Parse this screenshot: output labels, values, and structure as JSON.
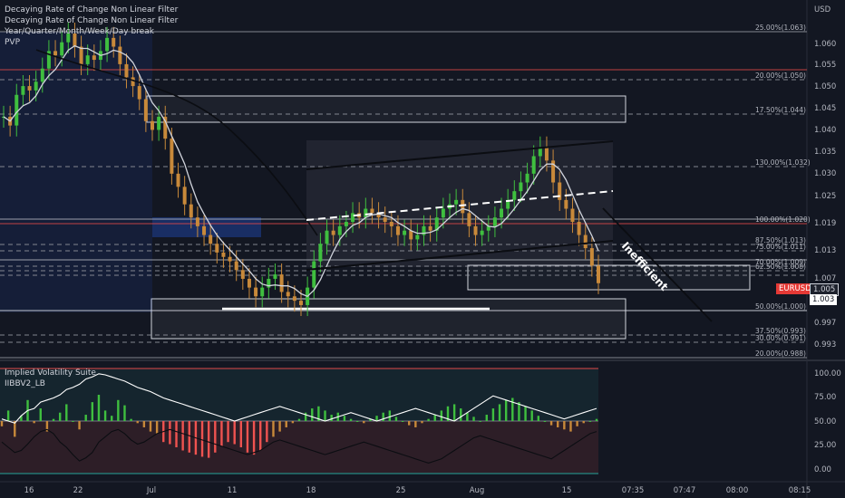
{
  "legend": {
    "indicators": [
      "Decaying Rate of Change Non Linear Filter",
      "Decaying Rate of Change Non Linear Filter",
      "Year/Quarter/Month/Week/Day break",
      "PVP"
    ],
    "lower_title": "Implied Volatility Suite",
    "lower_subtitle": "IIBBV2_LB"
  },
  "axis": {
    "currency": "USD",
    "price_ticks": [
      "1.060",
      "1.055",
      "1.050",
      "1.045",
      "1.040",
      "1.035",
      "1.030",
      "1.025",
      "1.019",
      "1.013",
      "1.007",
      "0.997",
      "0.993"
    ],
    "lower_ticks": [
      "100.00",
      "75.00",
      "50.00",
      "25.00",
      "0.00"
    ],
    "time_ticks": [
      "16",
      "22",
      "Jul",
      "11",
      "18",
      "25",
      "Aug",
      "15",
      "07:35",
      "07:47",
      "08:00",
      "08:15"
    ]
  },
  "fib_levels": [
    {
      "label": "25.00%(1.063)"
    },
    {
      "label": "20.00%(1.050)"
    },
    {
      "label": "17.50%(1.044)"
    },
    {
      "label": "130.00%(1.032)"
    },
    {
      "label": "100.00%(1.020)"
    },
    {
      "label": "87.50%(1.013)"
    },
    {
      "label": "75.00%(1.011)"
    },
    {
      "label": "70.00%(1.009)"
    },
    {
      "label": "62.50%(1.008)"
    },
    {
      "label": "50.00%(1.000)"
    },
    {
      "label": "37.50%(0.993)"
    },
    {
      "label": "30.00%(0.991)"
    },
    {
      "label": "20.00%(0.988)"
    }
  ],
  "annotation": "Inefficient",
  "price_badges": {
    "symbol": "EURUSD",
    "last": "1.005",
    "secondary": "1.003"
  },
  "colors": {
    "background": "#131722",
    "bull": "#26a69a",
    "bear": "#ef5350",
    "green_bar": "#3fbf3f",
    "orange_bar": "#c8893a",
    "red_line": "#e04848",
    "accent": "#2962ff"
  },
  "chart_data": [
    {
      "type": "candlestick",
      "title": "EURUSD",
      "ylim": [
        0.988,
        1.068
      ],
      "x_labels": [
        "16",
        "22",
        "Jul",
        "11",
        "18",
        "25",
        "Aug",
        "15"
      ],
      "close": [
        1.043,
        1.041,
        1.048,
        1.05,
        1.049,
        1.051,
        1.054,
        1.058,
        1.057,
        1.06,
        1.062,
        1.059,
        1.055,
        1.057,
        1.056,
        1.058,
        1.061,
        1.059,
        1.055,
        1.052,
        1.05,
        1.047,
        1.042,
        1.04,
        1.043,
        1.038,
        1.03,
        1.027,
        1.023,
        1.02,
        1.018,
        1.016,
        1.014,
        1.012,
        1.011,
        1.01,
        1.008,
        1.006,
        1.004,
        1.002,
        1.004,
        1.006,
        1.007,
        1.003,
        1.002,
        1.001,
        1.0,
        1.004,
        1.01,
        1.014,
        1.017,
        1.016,
        1.018,
        1.019,
        1.021,
        1.02,
        1.022,
        1.021,
        1.02,
        1.019,
        1.018,
        1.016,
        1.017,
        1.015,
        1.016,
        1.018,
        1.017,
        1.02,
        1.022,
        1.023,
        1.024,
        1.021,
        1.018,
        1.016,
        1.017,
        1.018,
        1.02,
        1.022,
        1.024,
        1.026,
        1.028,
        1.03,
        1.034,
        1.036,
        1.033,
        1.028,
        1.024,
        1.022,
        1.019,
        1.016,
        1.013,
        1.009,
        1.005
      ]
    },
    {
      "type": "bar",
      "title": "Implied Volatility Suite",
      "ylim": [
        0,
        100
      ],
      "values": [
        45,
        60,
        35,
        55,
        70,
        48,
        62,
        40,
        52,
        58,
        66,
        50,
        42,
        56,
        68,
        75,
        60,
        55,
        70,
        65,
        52,
        48,
        44,
        40,
        38,
        30,
        28,
        25,
        22,
        20,
        18,
        16,
        15,
        20,
        26,
        30,
        28,
        25,
        20,
        18,
        22,
        30,
        35,
        40,
        44,
        48,
        52,
        58,
        62,
        64,
        60,
        56,
        58,
        55,
        52,
        50,
        48,
        52,
        55,
        58,
        60,
        54,
        50,
        46,
        44,
        48,
        52,
        56,
        60,
        64,
        66,
        62,
        58,
        54,
        50,
        56,
        62,
        66,
        70,
        72,
        68,
        64,
        60,
        55,
        50,
        46,
        44,
        42,
        40,
        45,
        48,
        50,
        52
      ],
      "line_high": [
        52,
        50,
        48,
        55,
        60,
        62,
        68,
        70,
        72,
        75,
        80,
        82,
        85,
        90,
        92,
        95,
        94,
        92,
        90,
        88,
        85,
        82,
        80,
        78,
        75,
        72,
        70,
        68,
        66,
        64,
        62,
        60,
        58,
        56,
        54,
        52,
        50,
        52,
        54,
        56,
        58,
        60,
        62,
        64,
        62,
        60,
        58,
        56,
        54,
        52,
        50,
        52,
        54,
        56,
        58,
        56,
        54,
        52,
        50,
        52,
        54,
        56,
        58,
        60,
        62,
        60,
        58,
        56,
        54,
        52,
        50,
        54,
        58,
        62,
        66,
        70,
        74,
        72,
        70,
        68,
        66,
        64,
        62,
        60,
        58,
        56,
        54,
        52,
        54,
        56,
        58,
        60,
        62
      ],
      "line_low": [
        30,
        25,
        20,
        22,
        28,
        35,
        40,
        42,
        38,
        30,
        25,
        18,
        12,
        15,
        20,
        30,
        35,
        40,
        42,
        38,
        32,
        28,
        30,
        34,
        38,
        40,
        42,
        40,
        38,
        36,
        34,
        32,
        30,
        28,
        26,
        24,
        22,
        20,
        18,
        20,
        22,
        26,
        30,
        32,
        30,
        28,
        26,
        24,
        22,
        20,
        18,
        20,
        22,
        24,
        26,
        28,
        30,
        28,
        26,
        24,
        22,
        20,
        18,
        16,
        14,
        12,
        10,
        12,
        14,
        18,
        22,
        26,
        30,
        34,
        36,
        34,
        32,
        30,
        28,
        26,
        24,
        22,
        20,
        18,
        16,
        14,
        18,
        22,
        26,
        30,
        34,
        38,
        40
      ]
    }
  ]
}
